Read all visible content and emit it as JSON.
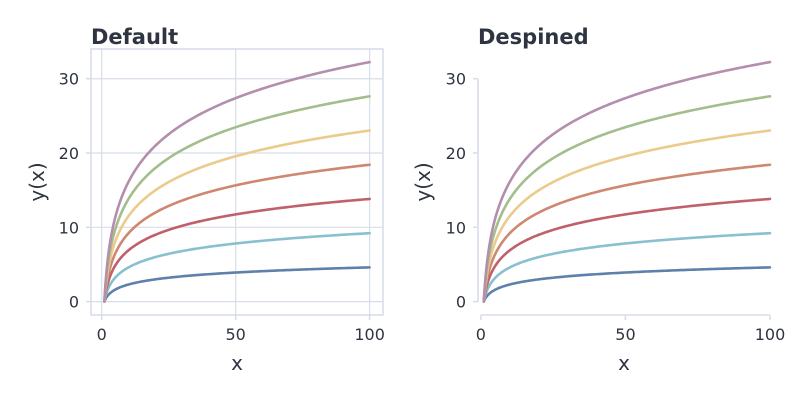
{
  "chart_data": [
    {
      "type": "line",
      "title": "Default",
      "xlabel": "x",
      "ylabel": "y(x)",
      "xlim": [
        -4,
        105
      ],
      "ylim": [
        -1.8,
        34
      ],
      "xticks": [
        "0",
        "50",
        "100"
      ],
      "yticks": [
        "0",
        "10",
        "20",
        "30"
      ],
      "grid": true,
      "despined": false,
      "x": [
        1,
        2,
        5,
        10,
        20,
        30,
        40,
        50,
        60,
        70,
        80,
        90,
        100
      ],
      "series": [
        {
          "color": "#5e81ac",
          "values": [
            0.0,
            0.69,
            1.61,
            2.3,
            3.0,
            3.4,
            3.69,
            3.91,
            4.09,
            4.25,
            4.38,
            4.5,
            4.61
          ]
        },
        {
          "color": "#88c0d0",
          "values": [
            0.0,
            1.39,
            3.22,
            4.61,
            5.99,
            6.8,
            7.38,
            7.82,
            8.19,
            8.5,
            8.76,
            9.0,
            9.21
          ]
        },
        {
          "color": "#bf616a",
          "values": [
            0.0,
            2.08,
            4.83,
            6.91,
            8.99,
            10.2,
            11.07,
            11.74,
            12.28,
            12.75,
            13.15,
            13.5,
            13.82
          ]
        },
        {
          "color": "#d08770",
          "values": [
            0.0,
            2.77,
            6.44,
            9.21,
            11.98,
            13.6,
            14.76,
            15.65,
            16.38,
            16.99,
            17.53,
            18.0,
            18.42
          ]
        },
        {
          "color": "#ebcb8b",
          "values": [
            0.0,
            3.47,
            8.05,
            11.51,
            14.98,
            17.01,
            18.44,
            19.56,
            20.47,
            21.24,
            21.91,
            22.5,
            23.03
          ]
        },
        {
          "color": "#a3be8c",
          "values": [
            0.0,
            4.16,
            9.66,
            13.82,
            17.97,
            20.41,
            22.13,
            23.47,
            24.57,
            25.49,
            26.29,
            27.0,
            27.63
          ]
        },
        {
          "color": "#b48ead",
          "values": [
            0.0,
            4.85,
            11.27,
            16.12,
            20.97,
            23.81,
            25.82,
            27.38,
            28.66,
            29.74,
            30.67,
            31.5,
            32.24
          ]
        }
      ]
    },
    {
      "type": "line",
      "title": "Despined",
      "xlabel": "x",
      "ylabel": "y(x)",
      "xlim": [
        -1,
        100
      ],
      "ylim": [
        -1.8,
        34
      ],
      "xticks": [
        "0",
        "50",
        "100"
      ],
      "yticks": [
        "0",
        "10",
        "20",
        "30"
      ],
      "grid": false,
      "despined": true,
      "x": [
        1,
        2,
        5,
        10,
        20,
        30,
        40,
        50,
        60,
        70,
        80,
        90,
        100
      ],
      "series": [
        {
          "color": "#5e81ac",
          "values": [
            0.0,
            0.69,
            1.61,
            2.3,
            3.0,
            3.4,
            3.69,
            3.91,
            4.09,
            4.25,
            4.38,
            4.5,
            4.61
          ]
        },
        {
          "color": "#88c0d0",
          "values": [
            0.0,
            1.39,
            3.22,
            4.61,
            5.99,
            6.8,
            7.38,
            7.82,
            8.19,
            8.5,
            8.76,
            9.0,
            9.21
          ]
        },
        {
          "color": "#bf616a",
          "values": [
            0.0,
            2.08,
            4.83,
            6.91,
            8.99,
            10.2,
            11.07,
            11.74,
            12.28,
            12.75,
            13.15,
            13.5,
            13.82
          ]
        },
        {
          "color": "#d08770",
          "values": [
            0.0,
            2.77,
            6.44,
            9.21,
            11.98,
            13.6,
            14.76,
            15.65,
            16.38,
            16.99,
            17.53,
            18.0,
            18.42
          ]
        },
        {
          "color": "#ebcb8b",
          "values": [
            0.0,
            3.47,
            8.05,
            11.51,
            14.98,
            17.01,
            18.44,
            19.56,
            20.47,
            21.24,
            21.91,
            22.5,
            23.03
          ]
        },
        {
          "color": "#a3be8c",
          "values": [
            0.0,
            4.16,
            9.66,
            13.82,
            17.97,
            20.41,
            22.13,
            23.47,
            24.57,
            25.49,
            26.29,
            27.0,
            27.63
          ]
        },
        {
          "color": "#b48ead",
          "values": [
            0.0,
            4.85,
            11.27,
            16.12,
            20.97,
            23.81,
            25.82,
            27.38,
            28.66,
            29.74,
            30.67,
            31.5,
            32.24
          ]
        }
      ]
    }
  ]
}
